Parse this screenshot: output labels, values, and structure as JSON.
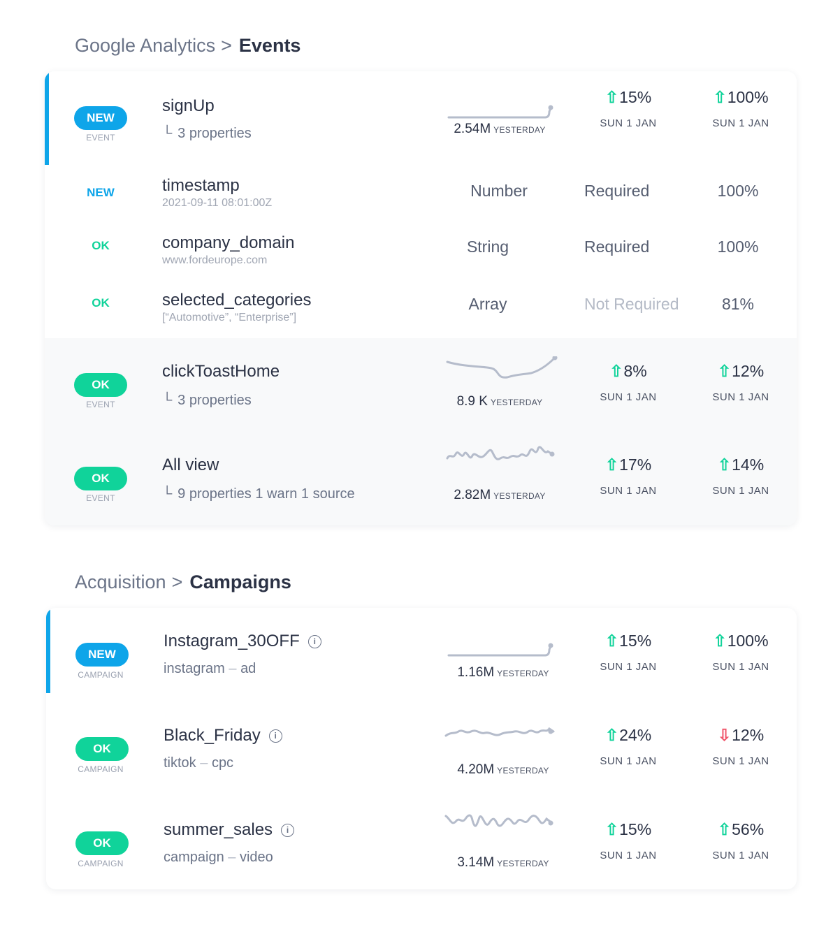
{
  "colors": {
    "accent": "#0ea5e9",
    "ok": "#10d39a",
    "up": "#10d39a",
    "down": "#f0566b",
    "new": "#0ea5e9"
  },
  "events_section": {
    "breadcrumb": {
      "parent": "Google Analytics",
      "separator": ">",
      "current": "Events"
    },
    "rows": [
      {
        "type": "event",
        "status": "NEW",
        "kind": "EVENT",
        "name": "signUp",
        "sub": "3 properties",
        "value": "2.54M",
        "value_label": "YESTERDAY",
        "change1": {
          "dir": "up",
          "text": "15%"
        },
        "date1": "SUN 1 JAN",
        "change2": {
          "dir": "up",
          "text": "100%"
        },
        "date2": "SUN 1 JAN",
        "selected": true,
        "sparkline": "flat-spike"
      },
      {
        "type": "prop",
        "status": "NEW",
        "name": "timestamp",
        "example": "2021-09-11 08:01:00Z",
        "dtype": "Number",
        "required": "Required",
        "coverage": "100%"
      },
      {
        "type": "prop",
        "status": "OK",
        "name": "company_domain",
        "example": "www.fordeurope.com",
        "dtype": "String",
        "required": "Required",
        "coverage": "100%"
      },
      {
        "type": "prop",
        "status": "OK",
        "name": "selected_categories",
        "example": "[“Automotive”, “Enterprise”]",
        "dtype": "Array",
        "required": "Not Required",
        "coverage": "81%"
      },
      {
        "type": "event",
        "status": "OK",
        "kind": "EVENT",
        "name": "clickToastHome",
        "sub": "3 properties",
        "value": "8.9 K",
        "value_label": "YESTERDAY",
        "change1": {
          "dir": "up",
          "text": "8%"
        },
        "date1": "SUN 1 JAN",
        "change2": {
          "dir": "up",
          "text": "12%"
        },
        "date2": "SUN 1 JAN",
        "selected": false,
        "sparkline": "dip"
      },
      {
        "type": "event",
        "status": "OK",
        "kind": "EVENT",
        "name": "All view",
        "sub": "9 properties 1 warn 1 source",
        "value": "2.82M",
        "value_label": "YESTERDAY",
        "change1": {
          "dir": "up",
          "text": "17%"
        },
        "date1": "SUN 1 JAN",
        "change2": {
          "dir": "up",
          "text": "14%"
        },
        "date2": "SUN 1 JAN",
        "selected": false,
        "sparkline": "wavy"
      }
    ]
  },
  "campaigns_section": {
    "breadcrumb": {
      "parent": "Acquisition",
      "separator": ">",
      "current": "Campaigns"
    },
    "rows": [
      {
        "status": "NEW",
        "kind": "CAMPAIGN",
        "name": "Instagram_30OFF",
        "source": "instagram",
        "dash": "–",
        "medium": "ad",
        "value": "1.16M",
        "value_label": "YESTERDAY",
        "change1": {
          "dir": "up",
          "text": "15%"
        },
        "date1": "SUN 1 JAN",
        "change2": {
          "dir": "up",
          "text": "100%"
        },
        "date2": "SUN 1 JAN",
        "selected": true,
        "sparkline": "flat-spike"
      },
      {
        "status": "OK",
        "kind": "CAMPAIGN",
        "name": "Black_Friday",
        "source": "tiktok",
        "dash": "–",
        "medium": "cpc",
        "value": "4.20M",
        "value_label": "YESTERDAY",
        "change1": {
          "dir": "up",
          "text": "24%"
        },
        "date1": "SUN 1 JAN",
        "change2": {
          "dir": "down",
          "text": "12%"
        },
        "date2": "SUN 1 JAN",
        "selected": false,
        "sparkline": "small-wave"
      },
      {
        "status": "OK",
        "kind": "CAMPAIGN",
        "name": "summer_sales",
        "source": "campaign",
        "dash": "–",
        "medium": "video",
        "value": "3.14M",
        "value_label": "YESTERDAY",
        "change1": {
          "dir": "up",
          "text": "15%"
        },
        "date1": "SUN 1 JAN",
        "change2": {
          "dir": "up",
          "text": "56%"
        },
        "date2": "SUN 1 JAN",
        "selected": false,
        "sparkline": "big-wave"
      }
    ]
  }
}
